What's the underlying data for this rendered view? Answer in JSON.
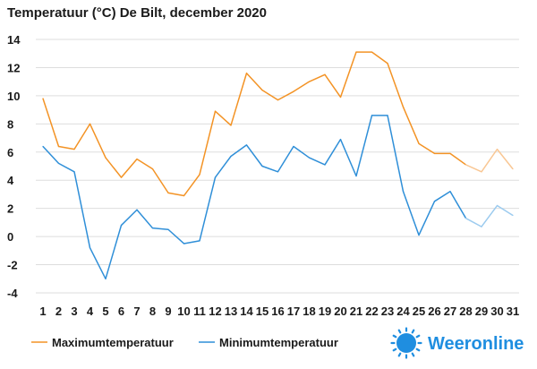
{
  "chart_data": {
    "type": "line",
    "title": "Temperatuur (°C)  De Bilt, december 2020",
    "xlabel": "",
    "ylabel": "",
    "ylim": [
      -4,
      14
    ],
    "yticks": [
      -4,
      -2,
      0,
      2,
      4,
      6,
      8,
      10,
      12,
      14
    ],
    "grid": true,
    "legend_position": "bottom-left",
    "categories": [
      1,
      2,
      3,
      4,
      5,
      6,
      7,
      8,
      9,
      10,
      11,
      12,
      13,
      14,
      15,
      16,
      17,
      18,
      19,
      20,
      21,
      22,
      23,
      24,
      25,
      26,
      27,
      28,
      29,
      30,
      31
    ],
    "forecast_from_day": 28,
    "series": [
      {
        "name": "Maximumtemperatuur",
        "color": "#f39325",
        "forecast_color": "#f9c794",
        "values": [
          9.8,
          6.4,
          6.2,
          8.0,
          5.6,
          4.2,
          5.5,
          4.8,
          3.1,
          2.9,
          4.4,
          8.9,
          7.9,
          11.6,
          10.4,
          9.7,
          10.3,
          11.0,
          11.5,
          9.9,
          13.1,
          13.1,
          12.3,
          9.2,
          6.6,
          5.9,
          5.9,
          5.1,
          4.6,
          6.2,
          4.8
        ]
      },
      {
        "name": "Minimumtemperatuur",
        "color": "#2f8fd8",
        "forecast_color": "#9ccbef",
        "values": [
          6.4,
          5.2,
          4.6,
          -0.8,
          -3.0,
          0.8,
          1.9,
          0.6,
          0.5,
          -0.5,
          -0.3,
          4.2,
          5.7,
          6.5,
          5.0,
          4.6,
          6.4,
          5.6,
          5.1,
          6.9,
          4.3,
          8.6,
          8.6,
          3.2,
          0.1,
          2.5,
          3.2,
          1.3,
          0.7,
          2.2,
          1.5
        ]
      }
    ]
  },
  "brand": {
    "name": "Weeronline",
    "color": "#1f8ee0"
  }
}
